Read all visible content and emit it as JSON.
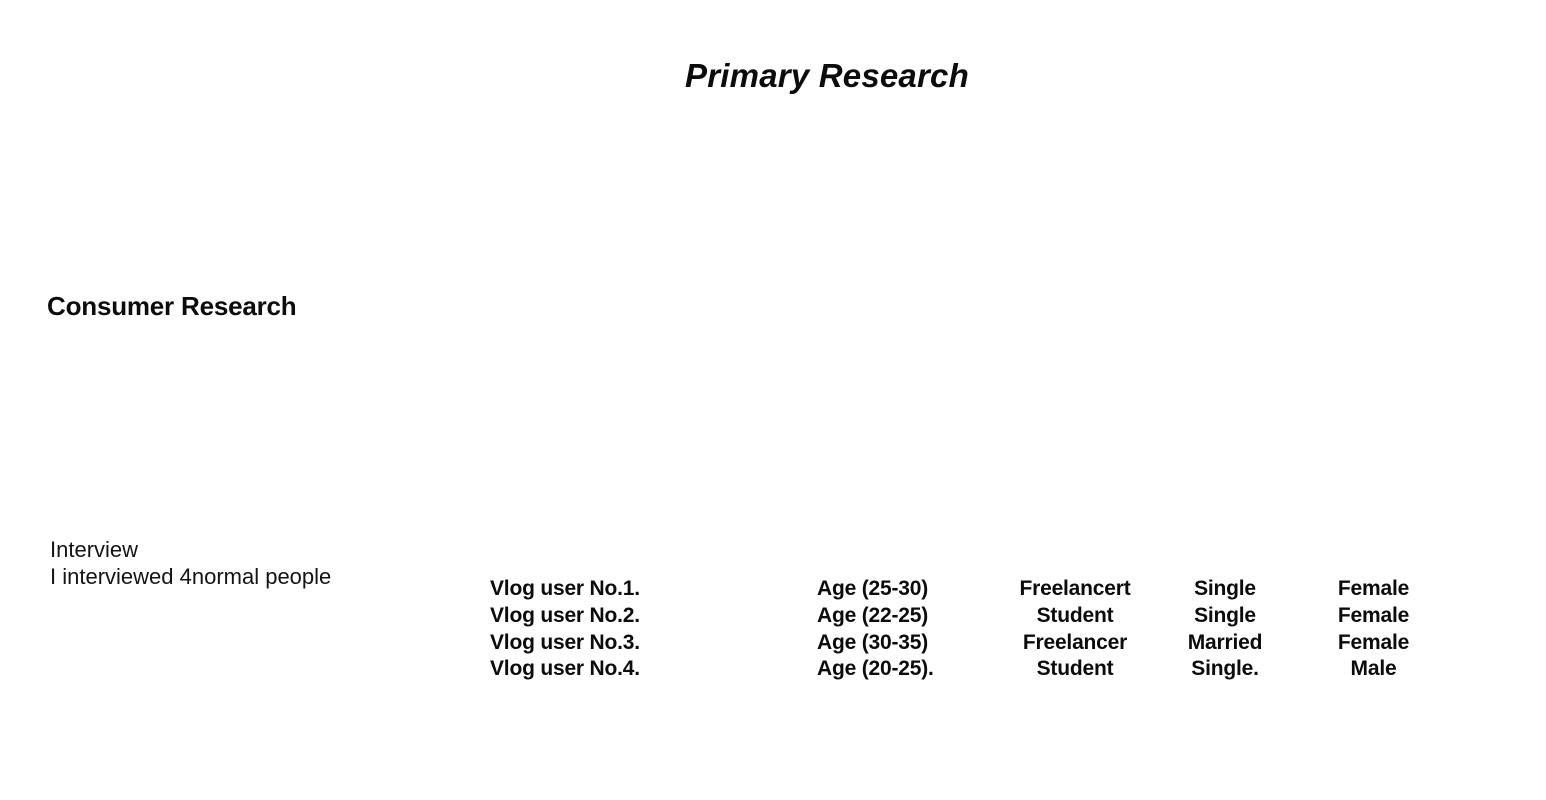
{
  "document": {
    "title": "Primary Research",
    "section": {
      "heading": "Consumer Research"
    },
    "interview": {
      "heading": "Interview",
      "note": "I interviewed 4normal people"
    },
    "participants": [
      {
        "name": "Vlog user No.1.",
        "age": "Age (25-30)",
        "occupation": "Freelancert",
        "marital_status": "Single",
        "gender": "Female"
      },
      {
        "name": "Vlog user No.2.",
        "age": "Age (22-25)",
        "occupation": "Student",
        "marital_status": "Single",
        "gender": "Female"
      },
      {
        "name": "Vlog user No.3.",
        "age": "Age (30-35)",
        "occupation": "Freelancer",
        "marital_status": "Married",
        "gender": "Female"
      },
      {
        "name": "Vlog user No.4.",
        "age": "Age (20-25).",
        "occupation": "Student",
        "marital_status": "Single.",
        "gender": "Male"
      }
    ]
  },
  "colors": {
    "background": "#ffffff",
    "text": "#0c0c0c"
  }
}
